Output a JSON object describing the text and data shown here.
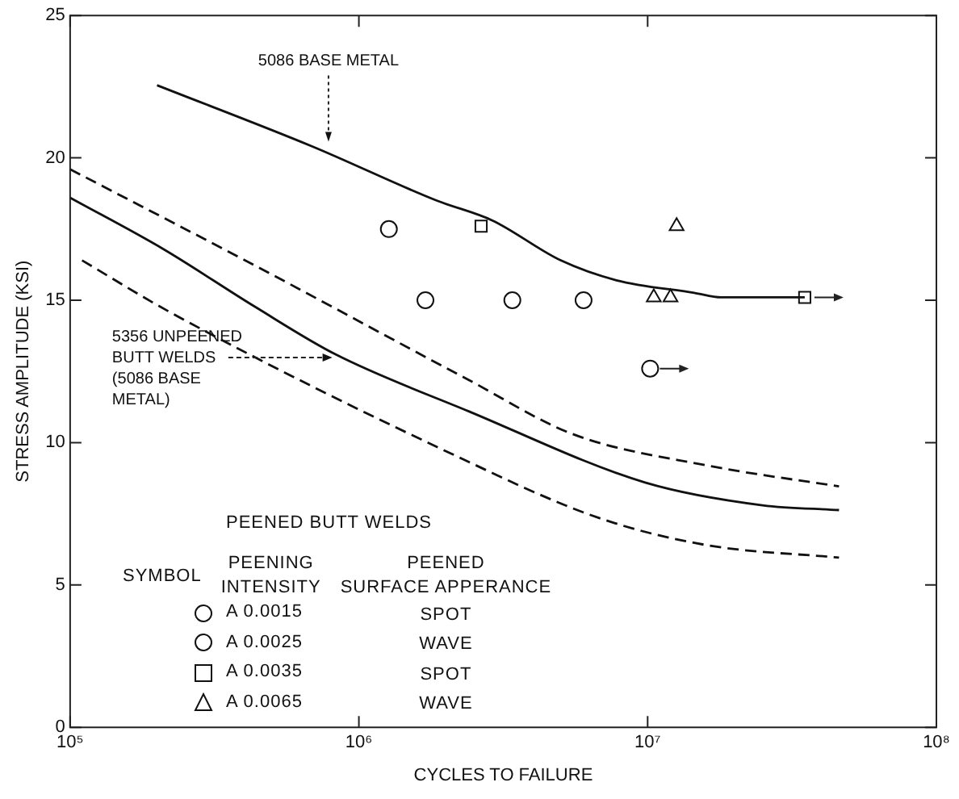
{
  "chart_data": {
    "type": "scatter",
    "xlabel": "CYCLES TO FAILURE",
    "ylabel": "STRESS AMPLITUDE (KSI)",
    "log": "x",
    "grid": false,
    "legend": "bottom left",
    "legend_title": "PEENED BUTT WELDS",
    "xlim": [
      100000,
      100000000
    ],
    "xticks": [
      {
        "value": 100000,
        "label": "10⁵"
      },
      {
        "value": 1000000,
        "label": "10⁶"
      },
      {
        "value": 10000000,
        "label": "10⁷"
      },
      {
        "value": 100000000,
        "label": "10⁸"
      }
    ],
    "ylim": [
      0,
      25
    ],
    "yticks": [
      0,
      5,
      10,
      15,
      20,
      25
    ],
    "series": [
      {
        "type": "line",
        "name": "5086 BASE METAL",
        "color": "#111111",
        "line_style": "solid",
        "marker": "none",
        "x": [
          200000,
          690000,
          1860000,
          2900000,
          5000000,
          7800000,
          14500000,
          18000000,
          35000000
        ],
        "values": [
          22.55,
          20.4,
          18.5,
          17.8,
          16.4,
          15.7,
          15.26,
          15.1,
          15.1
        ]
      },
      {
        "type": "line",
        "color": "#111111",
        "line_style": "dashed",
        "marker": "none",
        "x": [
          100000,
          440000,
          2400000,
          5500000,
          16000000,
          46000000
        ],
        "values": [
          19.6,
          16.2,
          12.2,
          10.3,
          9.2,
          8.46
        ]
      },
      {
        "type": "line",
        "name": "5356 UNPEENED\nBUTT WELDS\n(5086 BASE\nMETAL)",
        "color": "#111111",
        "line_style": "solid",
        "marker": "none",
        "x": [
          100000,
          210000,
          440000,
          830000,
          2400000,
          9800000,
          25000000,
          46000000
        ],
        "values": [
          18.6,
          16.8,
          14.75,
          13.1,
          11.1,
          8.6,
          7.8,
          7.63
        ]
      },
      {
        "type": "line",
        "color": "#111111",
        "line_style": "dashed",
        "marker": "none",
        "x": [
          110000,
          220000,
          2100000,
          6800000,
          16000000,
          46000000
        ],
        "values": [
          16.4,
          14.6,
          9.6,
          7.35,
          6.4,
          5.96
        ]
      },
      {
        "type": "scatter",
        "name": "A 0.0015",
        "color": "#111111",
        "marker": "circle",
        "x": [
          1270000,
          3400000
        ],
        "values": [
          17.5,
          15.0
        ]
      },
      {
        "type": "scatter",
        "name": "A 0.0025",
        "color": "#111111",
        "marker": "circle",
        "x": [
          1700000,
          6000000,
          10200000
        ],
        "values": [
          15.0,
          15.0,
          12.6
        ]
      },
      {
        "type": "scatter",
        "name": "A 0.0035",
        "color": "#111111",
        "marker": "square",
        "x": [
          2650000,
          35000000
        ],
        "values": [
          17.6,
          15.1
        ]
      },
      {
        "type": "scatter",
        "name": "A 0.0065",
        "color": "#111111",
        "marker": "triangle",
        "x": [
          12600000,
          10500000,
          12000000
        ],
        "values": [
          17.6,
          15.1,
          15.1
        ]
      }
    ],
    "annotations": [
      "SYMBOL",
      "PEENING\nINTENSITY",
      "PEENED\nSURFACE APPERANCE",
      "SPOT",
      "WAVE",
      "SPOT",
      "WAVE"
    ]
  }
}
